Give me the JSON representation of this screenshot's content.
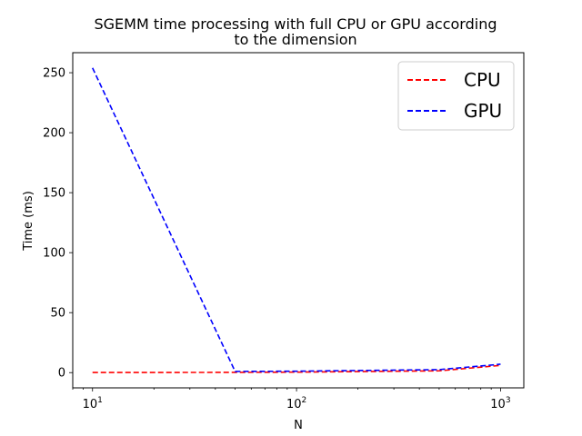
{
  "chart_data": {
    "type": "line",
    "title_line1": "SGEMM time processing with full CPU or GPU according",
    "title_line2": "to the dimension",
    "xlabel": "N",
    "ylabel": "Time (ms)",
    "xscale": "log",
    "xlim": [
      8,
      1300
    ],
    "ylim": [
      -12.7,
      266.7
    ],
    "grid": false,
    "legend_position": "top-right",
    "x_ticks": [
      {
        "base": "10",
        "exp": "1",
        "value": 10
      },
      {
        "base": "10",
        "exp": "2",
        "value": 100
      },
      {
        "base": "10",
        "exp": "3",
        "value": 1000
      }
    ],
    "y_ticks": [
      {
        "label": "0",
        "value": 0
      },
      {
        "label": "50",
        "value": 50
      },
      {
        "label": "100",
        "value": 100
      },
      {
        "label": "150",
        "value": 150
      },
      {
        "label": "200",
        "value": 200
      },
      {
        "label": "250",
        "value": 250
      }
    ],
    "x": [
      10,
      50,
      100,
      500,
      1000
    ],
    "series": [
      {
        "name": "CPU",
        "color": "#ff0000",
        "values": [
          0.1,
          0.2,
          0.4,
          1.5,
          6.0
        ]
      },
      {
        "name": "GPU",
        "color": "#0000ff",
        "values": [
          254.0,
          1.0,
          1.2,
          2.5,
          7.0
        ]
      }
    ]
  }
}
